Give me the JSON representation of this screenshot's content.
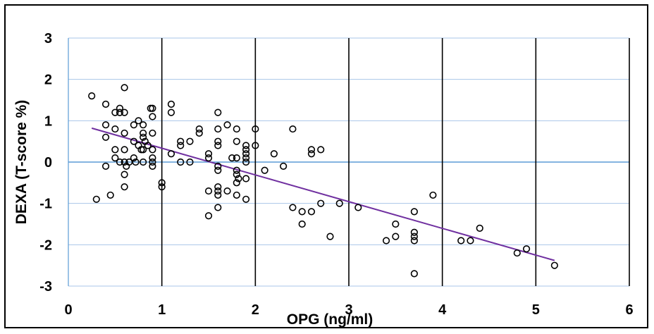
{
  "chart_data": {
    "type": "scatter",
    "title": "",
    "xlabel": "OPG (ng/ml)",
    "ylabel": "DEXA (T-score %)",
    "xlim": [
      0,
      6
    ],
    "ylim": [
      -3,
      3
    ],
    "x_ticks": [
      0,
      1,
      2,
      3,
      4,
      5,
      6
    ],
    "y_ticks": [
      3,
      2,
      1,
      0,
      -1,
      -2,
      -3
    ],
    "x_tick_labels": [
      "0",
      "1",
      "2",
      "3",
      "4",
      "5",
      "6"
    ],
    "y_tick_labels": [
      "3",
      "2",
      "1",
      "0",
      "-1",
      "-2",
      "-3"
    ],
    "grid": true,
    "legend": "none",
    "colors": {
      "vertical_gridlines": "#000000",
      "horizontal_gridlines": "#a9c6e8",
      "zero_line": "#5b9bd5",
      "markers": "#000000",
      "trendline": "#7030a0"
    },
    "series": [
      {
        "marker": "hollow-circle",
        "points": [
          [
            0.25,
            1.6
          ],
          [
            0.3,
            -0.9
          ],
          [
            0.4,
            1.4
          ],
          [
            0.4,
            0.9
          ],
          [
            0.4,
            0.6
          ],
          [
            0.4,
            -0.1
          ],
          [
            0.45,
            -0.8
          ],
          [
            0.5,
            1.2
          ],
          [
            0.5,
            0.8
          ],
          [
            0.5,
            0.3
          ],
          [
            0.5,
            0.1
          ],
          [
            0.55,
            1.3
          ],
          [
            0.55,
            1.2
          ],
          [
            0.55,
            0.0
          ],
          [
            0.6,
            1.8
          ],
          [
            0.6,
            1.2
          ],
          [
            0.6,
            0.7
          ],
          [
            0.6,
            0.3
          ],
          [
            0.6,
            0.0
          ],
          [
            0.6,
            -0.3
          ],
          [
            0.6,
            -0.6
          ],
          [
            0.62,
            -0.1
          ],
          [
            0.65,
            0.0
          ],
          [
            0.7,
            0.9
          ],
          [
            0.7,
            0.5
          ],
          [
            0.7,
            0.1
          ],
          [
            0.72,
            0.0
          ],
          [
            0.75,
            1.0
          ],
          [
            0.75,
            0.4
          ],
          [
            0.78,
            0.3
          ],
          [
            0.8,
            0.9
          ],
          [
            0.8,
            0.7
          ],
          [
            0.8,
            0.6
          ],
          [
            0.8,
            0.3
          ],
          [
            0.8,
            0.0
          ],
          [
            0.82,
            0.5
          ],
          [
            0.85,
            0.4
          ],
          [
            0.88,
            1.3
          ],
          [
            0.9,
            1.3
          ],
          [
            0.9,
            1.1
          ],
          [
            0.9,
            0.7
          ],
          [
            0.9,
            0.3
          ],
          [
            0.9,
            0.1
          ],
          [
            0.9,
            0.0
          ],
          [
            0.9,
            -0.1
          ],
          [
            1.0,
            -0.5
          ],
          [
            1.0,
            -0.6
          ],
          [
            1.1,
            1.4
          ],
          [
            1.1,
            1.2
          ],
          [
            1.1,
            0.2
          ],
          [
            1.2,
            0.5
          ],
          [
            1.2,
            0.4
          ],
          [
            1.2,
            0.0
          ],
          [
            1.3,
            0.5
          ],
          [
            1.3,
            0.0
          ],
          [
            1.4,
            0.8
          ],
          [
            1.4,
            0.7
          ],
          [
            1.5,
            0.2
          ],
          [
            1.5,
            0.1
          ],
          [
            1.5,
            -0.7
          ],
          [
            1.5,
            -1.3
          ],
          [
            1.6,
            1.2
          ],
          [
            1.6,
            0.8
          ],
          [
            1.6,
            0.5
          ],
          [
            1.6,
            0.4
          ],
          [
            1.6,
            -0.1
          ],
          [
            1.6,
            -0.2
          ],
          [
            1.6,
            -0.6
          ],
          [
            1.6,
            -0.7
          ],
          [
            1.6,
            -0.8
          ],
          [
            1.6,
            -1.1
          ],
          [
            1.7,
            0.9
          ],
          [
            1.7,
            -0.7
          ],
          [
            1.75,
            0.1
          ],
          [
            1.8,
            0.8
          ],
          [
            1.8,
            0.5
          ],
          [
            1.8,
            0.1
          ],
          [
            1.8,
            -0.2
          ],
          [
            1.8,
            -0.3
          ],
          [
            1.8,
            -0.5
          ],
          [
            1.8,
            -0.8
          ],
          [
            1.82,
            -0.4
          ],
          [
            1.9,
            0.4
          ],
          [
            1.9,
            0.3
          ],
          [
            1.9,
            0.2
          ],
          [
            1.9,
            0.1
          ],
          [
            1.9,
            0.0
          ],
          [
            1.9,
            -0.4
          ],
          [
            1.9,
            -0.9
          ],
          [
            2.0,
            0.8
          ],
          [
            2.0,
            0.4
          ],
          [
            2.1,
            -0.2
          ],
          [
            2.2,
            0.2
          ],
          [
            2.3,
            -0.1
          ],
          [
            2.4,
            0.8
          ],
          [
            2.4,
            -1.1
          ],
          [
            2.5,
            -1.2
          ],
          [
            2.5,
            -1.5
          ],
          [
            2.6,
            0.3
          ],
          [
            2.6,
            0.2
          ],
          [
            2.6,
            -1.2
          ],
          [
            2.7,
            0.3
          ],
          [
            2.7,
            -1.0
          ],
          [
            2.8,
            -1.8
          ],
          [
            2.9,
            -1.0
          ],
          [
            3.1,
            -1.1
          ],
          [
            3.4,
            -1.9
          ],
          [
            3.5,
            -1.5
          ],
          [
            3.5,
            -1.8
          ],
          [
            3.7,
            -1.2
          ],
          [
            3.7,
            -1.7
          ],
          [
            3.7,
            -1.8
          ],
          [
            3.7,
            -1.9
          ],
          [
            3.7,
            -2.7
          ],
          [
            3.9,
            -0.8
          ],
          [
            4.2,
            -1.9
          ],
          [
            4.3,
            -1.9
          ],
          [
            4.4,
            -1.6
          ],
          [
            4.8,
            -2.2
          ],
          [
            4.9,
            -2.1
          ],
          [
            5.2,
            -2.5
          ]
        ]
      }
    ],
    "trendline": {
      "type": "linear",
      "x": [
        0.25,
        5.2
      ],
      "y": [
        0.82,
        -2.38
      ]
    }
  }
}
